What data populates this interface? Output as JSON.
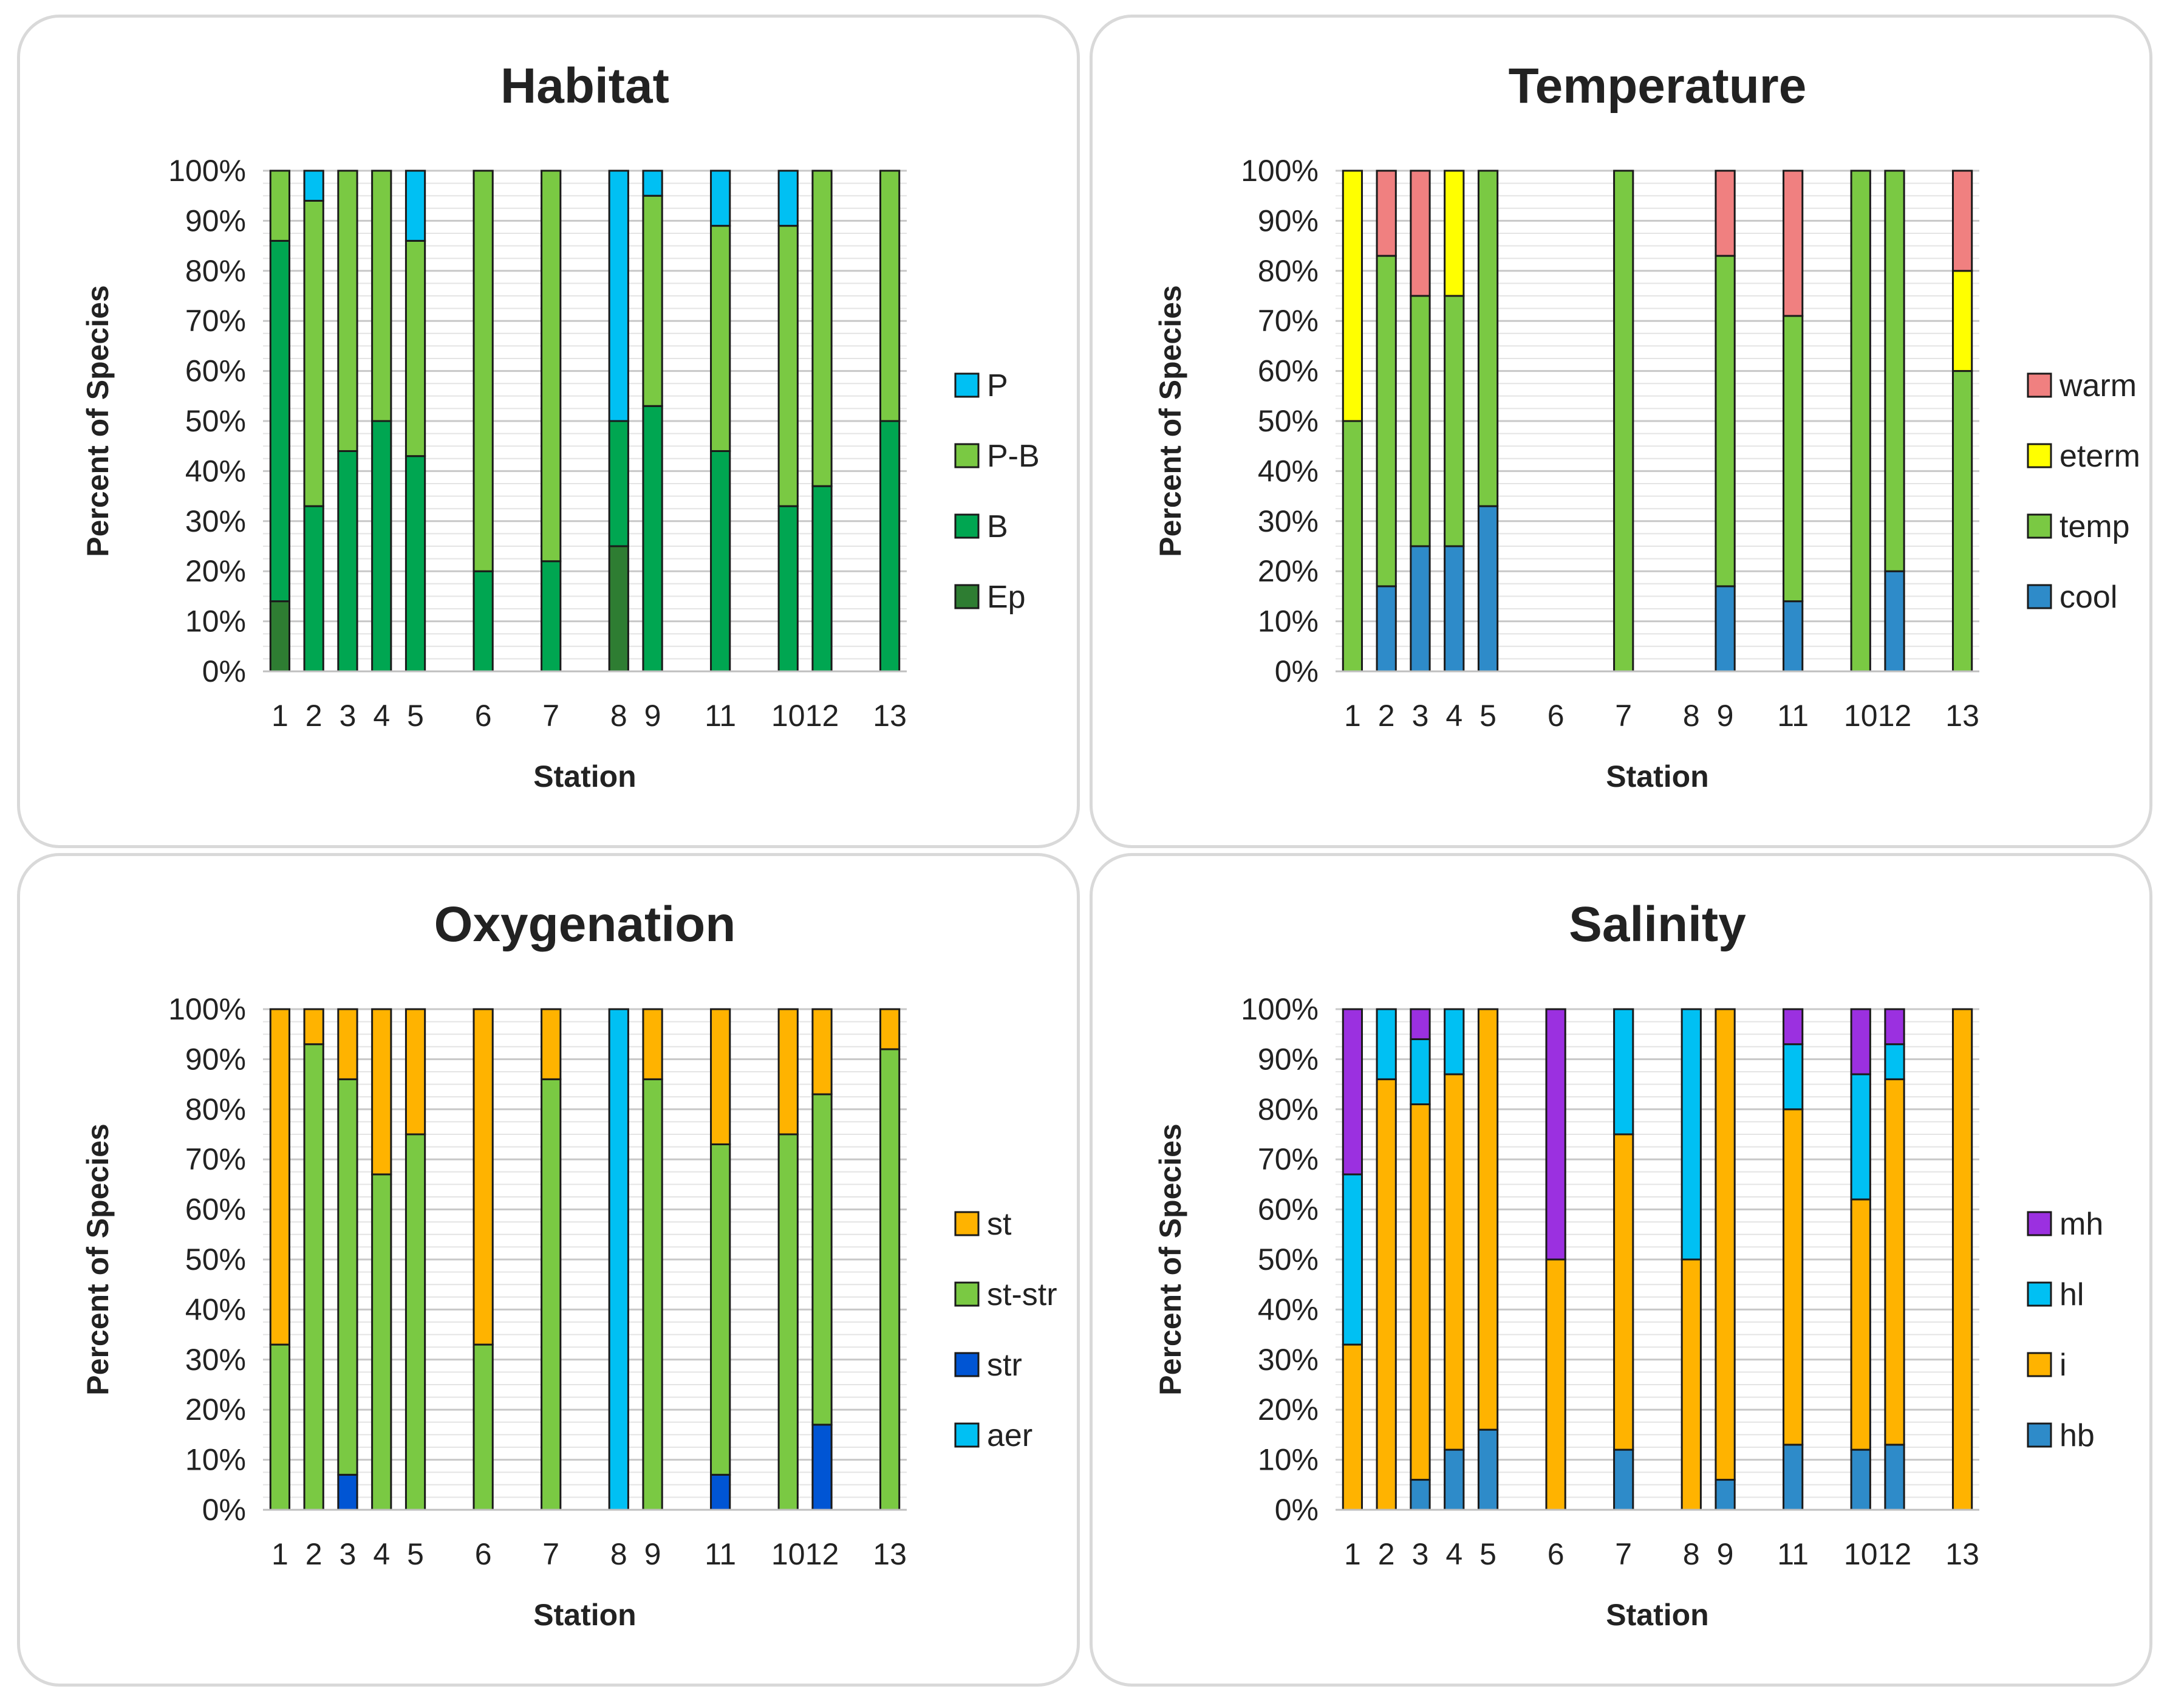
{
  "chart_data": [
    {
      "type": "bar",
      "stacked": true,
      "title": "Habitat",
      "xlabel": "Station",
      "ylabel": "Percent of Species",
      "ylim": [
        0,
        100
      ],
      "ytick_labels": [
        "0%",
        "10%",
        "20%",
        "30%",
        "40%",
        "50%",
        "60%",
        "70%",
        "80%",
        "90%",
        "100%"
      ],
      "categories": [
        "1",
        "2",
        "3",
        "4",
        "5",
        "",
        "6",
        "",
        "7",
        "",
        "8",
        "9",
        "",
        "11",
        "",
        "10",
        "12",
        "",
        "13"
      ],
      "series": [
        {
          "name": "Ep",
          "color": "#2e7d32",
          "values": [
            14,
            0,
            0,
            0,
            0,
            0,
            0,
            0,
            0,
            0,
            25,
            0,
            0,
            0,
            0,
            0,
            0,
            0,
            0
          ]
        },
        {
          "name": "B",
          "color": "#00a651",
          "values": [
            72,
            33,
            44,
            50,
            43,
            0,
            20,
            0,
            22,
            0,
            25,
            53,
            0,
            44,
            0,
            33,
            37,
            0,
            50
          ]
        },
        {
          "name": "P-B",
          "color": "#7ac943",
          "values": [
            14,
            61,
            56,
            50,
            43,
            0,
            80,
            0,
            78,
            0,
            0,
            42,
            0,
            45,
            0,
            56,
            63,
            0,
            50
          ]
        },
        {
          "name": "P",
          "color": "#00c0f3",
          "values": [
            0,
            6,
            0,
            0,
            14,
            0,
            0,
            0,
            0,
            0,
            50,
            5,
            0,
            11,
            0,
            11,
            0,
            0,
            0
          ]
        }
      ],
      "legend": [
        "P",
        "P-B",
        "B",
        "Ep"
      ],
      "legend_position": "right"
    },
    {
      "type": "bar",
      "stacked": true,
      "title": "Temperature",
      "xlabel": "Station",
      "ylabel": "Percent of Species",
      "ylim": [
        0,
        100
      ],
      "ytick_labels": [
        "0%",
        "10%",
        "20%",
        "30%",
        "40%",
        "50%",
        "60%",
        "70%",
        "80%",
        "90%",
        "100%"
      ],
      "categories": [
        "1",
        "2",
        "3",
        "4",
        "5",
        "",
        "6",
        "",
        "7",
        "",
        "8",
        "9",
        "",
        "11",
        "",
        "10",
        "12",
        "",
        "13"
      ],
      "series": [
        {
          "name": "cool",
          "color": "#2e8bc9",
          "values": [
            0,
            17,
            25,
            25,
            33,
            0,
            0,
            0,
            0,
            0,
            0,
            17,
            0,
            14,
            0,
            0,
            20,
            0,
            0
          ]
        },
        {
          "name": "temp",
          "color": "#7ac943",
          "values": [
            50,
            66,
            50,
            50,
            67,
            0,
            0,
            0,
            100,
            0,
            0,
            66,
            0,
            57,
            0,
            100,
            80,
            0,
            60
          ]
        },
        {
          "name": "eterm",
          "color": "#ffff00",
          "values": [
            50,
            0,
            0,
            25,
            0,
            0,
            0,
            0,
            0,
            0,
            0,
            0,
            0,
            0,
            0,
            0,
            0,
            0,
            20
          ]
        },
        {
          "name": "warm",
          "color": "#f08080",
          "values": [
            0,
            17,
            25,
            0,
            0,
            0,
            0,
            0,
            0,
            0,
            0,
            17,
            0,
            29,
            0,
            0,
            0,
            0,
            20
          ]
        }
      ],
      "legend": [
        "warm",
        "eterm",
        "temp",
        "cool"
      ],
      "legend_position": "right"
    },
    {
      "type": "bar",
      "stacked": true,
      "title": "Oxygenation",
      "xlabel": "Station",
      "ylabel": "Percent of Species",
      "ylim": [
        0,
        100
      ],
      "ytick_labels": [
        "0%",
        "10%",
        "20%",
        "30%",
        "40%",
        "50%",
        "60%",
        "70%",
        "80%",
        "90%",
        "100%"
      ],
      "categories": [
        "1",
        "2",
        "3",
        "4",
        "5",
        "",
        "6",
        "",
        "7",
        "",
        "8",
        "9",
        "",
        "11",
        "",
        "10",
        "12",
        "",
        "13"
      ],
      "series": [
        {
          "name": "aer",
          "color": "#00c0f3",
          "values": [
            0,
            0,
            0,
            0,
            0,
            0,
            0,
            0,
            0,
            0,
            100,
            0,
            0,
            0,
            0,
            0,
            0,
            0,
            0
          ]
        },
        {
          "name": "str",
          "color": "#0055d4",
          "values": [
            0,
            0,
            7,
            0,
            0,
            0,
            0,
            0,
            0,
            0,
            0,
            0,
            0,
            7,
            0,
            0,
            17,
            0,
            0
          ]
        },
        {
          "name": "st-str",
          "color": "#7ac943",
          "values": [
            33,
            93,
            79,
            67,
            75,
            0,
            33,
            0,
            86,
            0,
            0,
            86,
            0,
            66,
            0,
            75,
            66,
            0,
            92
          ]
        },
        {
          "name": "st",
          "color": "#ffb300",
          "values": [
            67,
            7,
            14,
            33,
            25,
            0,
            67,
            0,
            14,
            0,
            0,
            14,
            0,
            27,
            0,
            25,
            17,
            0,
            8
          ]
        }
      ],
      "legend": [
        "st",
        "st-str",
        "str",
        "aer"
      ],
      "legend_position": "right"
    },
    {
      "type": "bar",
      "stacked": true,
      "title": "Salinity",
      "xlabel": "Station",
      "ylabel": "Percent of Species",
      "ylim": [
        0,
        100
      ],
      "ytick_labels": [
        "0%",
        "10%",
        "20%",
        "30%",
        "40%",
        "50%",
        "60%",
        "70%",
        "80%",
        "90%",
        "100%"
      ],
      "categories": [
        "1",
        "2",
        "3",
        "4",
        "5",
        "",
        "6",
        "",
        "7",
        "",
        "8",
        "9",
        "",
        "11",
        "",
        "10",
        "12",
        "",
        "13"
      ],
      "series": [
        {
          "name": "hb",
          "color": "#2e8bc9",
          "values": [
            0,
            0,
            6,
            12,
            16,
            0,
            0,
            0,
            12,
            0,
            0,
            6,
            0,
            13,
            0,
            12,
            13,
            0,
            0
          ]
        },
        {
          "name": "i",
          "color": "#ffb300",
          "values": [
            33,
            86,
            75,
            75,
            84,
            0,
            50,
            0,
            63,
            0,
            50,
            94,
            0,
            67,
            0,
            50,
            73,
            0,
            100
          ]
        },
        {
          "name": "hl",
          "color": "#00c0f3",
          "values": [
            34,
            14,
            13,
            13,
            0,
            0,
            0,
            0,
            25,
            0,
            50,
            0,
            0,
            13,
            0,
            25,
            7,
            0,
            0
          ]
        },
        {
          "name": "mh",
          "color": "#9b30e0",
          "values": [
            33,
            0,
            6,
            0,
            0,
            0,
            50,
            0,
            0,
            0,
            0,
            0,
            0,
            7,
            0,
            13,
            7,
            0,
            0
          ]
        }
      ],
      "legend": [
        "mh",
        "hl",
        "i",
        "hb"
      ],
      "legend_position": "right"
    }
  ]
}
